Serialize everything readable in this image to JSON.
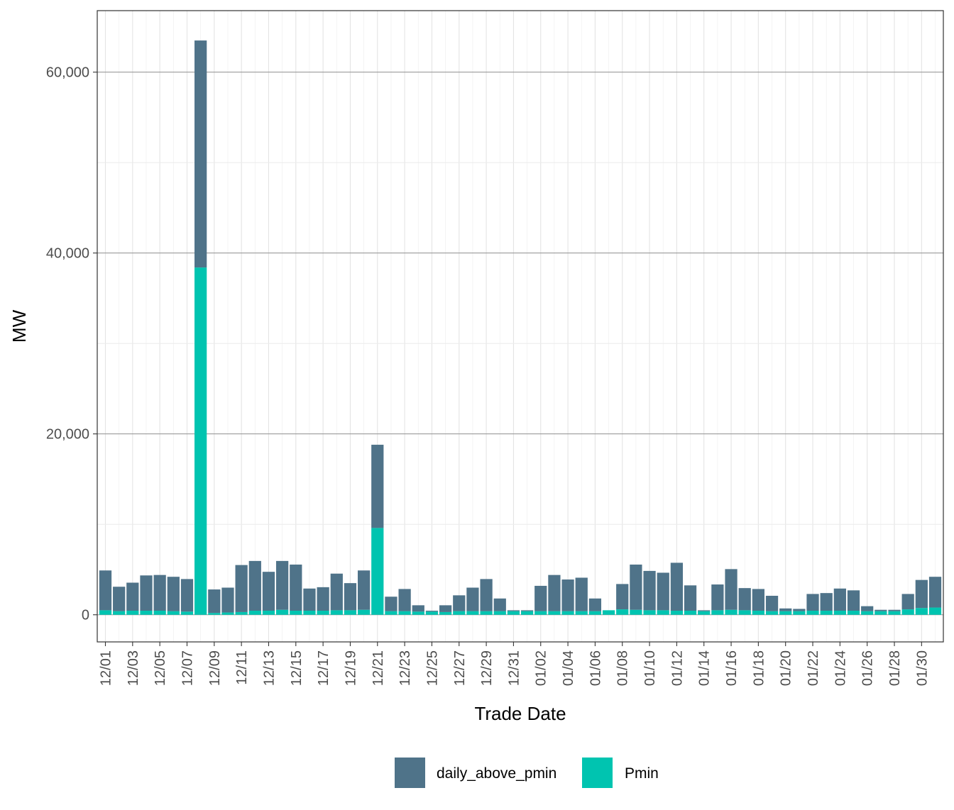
{
  "chart_data": {
    "type": "bar",
    "stacked": true,
    "title": "",
    "xlabel": "Trade Date",
    "ylabel": "MW",
    "ylim": [
      -3000,
      66800
    ],
    "yticks": [
      0,
      20000,
      40000,
      60000
    ],
    "ytick_labels": [
      "0",
      "20,000",
      "40,000",
      "60,000"
    ],
    "grid": true,
    "legend_position": "bottom",
    "categories": [
      "12/01",
      "12/02",
      "12/03",
      "12/04",
      "12/05",
      "12/06",
      "12/07",
      "12/08",
      "12/09",
      "12/10",
      "12/11",
      "12/12",
      "12/13",
      "12/14",
      "12/15",
      "12/16",
      "12/17",
      "12/18",
      "12/19",
      "12/20",
      "12/21",
      "12/22",
      "12/23",
      "12/24",
      "12/25",
      "12/26",
      "12/27",
      "12/28",
      "12/29",
      "12/30",
      "12/31",
      "01/01",
      "01/02",
      "01/03",
      "01/04",
      "01/05",
      "01/06",
      "01/07",
      "01/08",
      "01/09",
      "01/10",
      "01/11",
      "01/12",
      "01/13",
      "01/14",
      "01/15",
      "01/16",
      "01/17",
      "01/18",
      "01/19",
      "01/20",
      "01/21",
      "01/22",
      "01/23",
      "01/24",
      "01/25",
      "01/26",
      "01/27",
      "01/28",
      "01/29",
      "01/30",
      "01/31"
    ],
    "xtick_labels": [
      "12/01",
      "12/03",
      "12/05",
      "12/07",
      "12/09",
      "12/11",
      "12/13",
      "12/15",
      "12/17",
      "12/19",
      "12/21",
      "12/23",
      "12/25",
      "12/27",
      "12/29",
      "12/31",
      "01/02",
      "01/04",
      "01/06",
      "01/08",
      "01/10",
      "01/12",
      "01/14",
      "01/16",
      "01/18",
      "01/20",
      "01/22",
      "01/24",
      "01/26",
      "01/28",
      "01/30"
    ],
    "series": [
      {
        "name": "Pmin",
        "color": "#00C4B0",
        "values": [
          500,
          400,
          450,
          450,
          450,
          400,
          350,
          38400,
          200,
          250,
          300,
          450,
          450,
          550,
          450,
          450,
          450,
          500,
          500,
          550,
          9600,
          400,
          400,
          350,
          350,
          300,
          400,
          400,
          400,
          400,
          400,
          400,
          400,
          400,
          400,
          400,
          400,
          500,
          600,
          550,
          500,
          500,
          450,
          450,
          400,
          500,
          550,
          500,
          450,
          400,
          400,
          400,
          450,
          450,
          450,
          450,
          400,
          400,
          400,
          600,
          750,
          800
        ]
      },
      {
        "name": "daily_above_pmin",
        "color": "#4F7389",
        "values": [
          4400,
          2700,
          3100,
          3900,
          3950,
          3800,
          3600,
          25100,
          2600,
          2750,
          5200,
          5500,
          4300,
          5400,
          5100,
          2450,
          2600,
          4050,
          3000,
          4350,
          9200,
          1600,
          2450,
          700,
          100,
          750,
          1750,
          2600,
          3550,
          1400,
          100,
          100,
          2800,
          4000,
          3500,
          3700,
          1400,
          0,
          2800,
          5000,
          4350,
          4150,
          5300,
          2800,
          100,
          2850,
          4500,
          2450,
          2400,
          1700,
          300,
          250,
          1850,
          1950,
          2450,
          2250,
          550,
          150,
          150,
          1700,
          3100,
          3400
        ]
      }
    ]
  }
}
